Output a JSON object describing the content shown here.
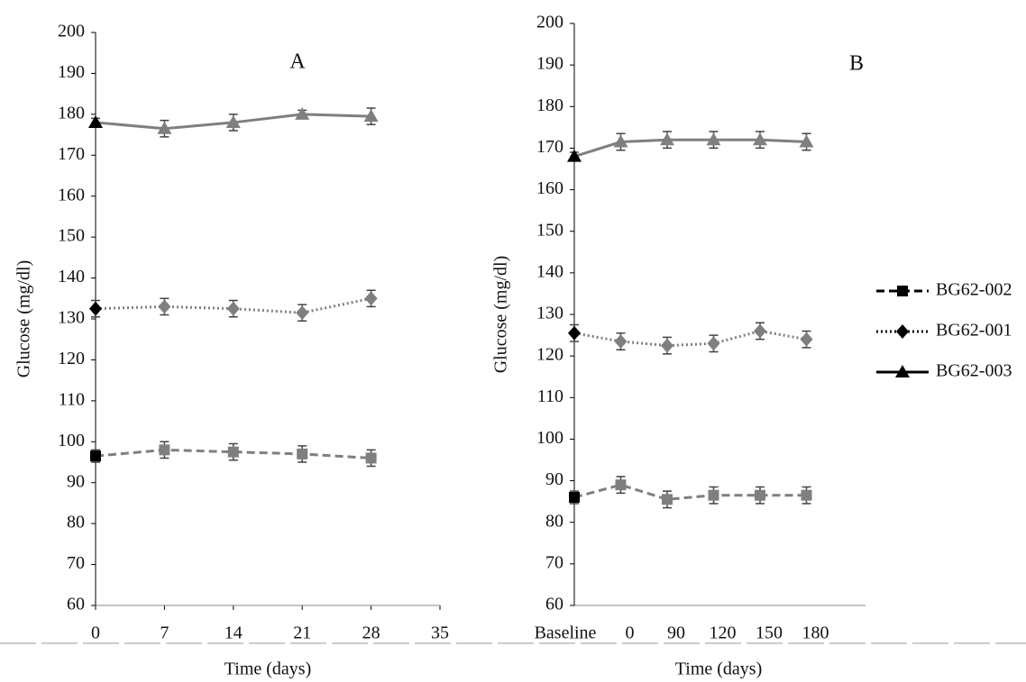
{
  "chart_data": [
    {
      "type": "line",
      "annotation": "A",
      "ylabel": "Glucose (mg/dl)",
      "xlabel": "Time (days)",
      "x": [
        0,
        7,
        14,
        21,
        28
      ],
      "xlim": [
        0,
        35
      ],
      "xticks": [
        0,
        7,
        14,
        21,
        28,
        35
      ],
      "ylim": [
        60,
        200
      ],
      "yticks": [
        60,
        70,
        80,
        90,
        100,
        110,
        120,
        130,
        140,
        150,
        160,
        170,
        180,
        190,
        200
      ],
      "series": [
        {
          "name": "BG62-002",
          "color": "#7f7f7f",
          "marker": "square",
          "dash": "dashed",
          "values": [
            96.5,
            98,
            97.5,
            97,
            96
          ],
          "errors": [
            1.5,
            2,
            2,
            2,
            2
          ]
        },
        {
          "name": "BG62-001",
          "color": "#7f7f7f",
          "marker": "diamond",
          "dash": "dotted",
          "values": [
            132.5,
            133,
            132.5,
            131.5,
            135
          ],
          "errors": [
            2,
            2,
            2,
            2,
            2
          ]
        },
        {
          "name": "BG62-003",
          "color": "#7f7f7f",
          "marker": "triangle",
          "dash": "solid",
          "values": [
            178,
            176.5,
            178,
            180,
            179.5
          ],
          "errors": [
            1,
            2,
            2,
            1,
            2
          ]
        }
      ]
    },
    {
      "type": "line",
      "annotation": "B",
      "ylabel": "Glucose (mg/dl)",
      "xlabel": "Time (days)",
      "categories": [
        "Baseline",
        "0",
        "90",
        "120",
        "150",
        "180"
      ],
      "ylim": [
        60,
        200
      ],
      "yticks": [
        60,
        70,
        80,
        90,
        100,
        110,
        120,
        130,
        140,
        150,
        160,
        170,
        180,
        190,
        200
      ],
      "series": [
        {
          "name": "BG62-002",
          "color": "#7f7f7f",
          "marker": "square",
          "dash": "dashed",
          "values": [
            86,
            89,
            85.5,
            86.5,
            86.5,
            86.5
          ],
          "errors": [
            1.5,
            2,
            2,
            2,
            2,
            2
          ]
        },
        {
          "name": "BG62-001",
          "color": "#7f7f7f",
          "marker": "diamond",
          "dash": "dotted",
          "values": [
            125.5,
            123.5,
            122.5,
            123,
            126,
            124
          ],
          "errors": [
            2,
            2,
            2,
            2,
            2,
            2
          ]
        },
        {
          "name": "BG62-003",
          "color": "#7f7f7f",
          "marker": "triangle",
          "dash": "solid",
          "values": [
            168,
            171.5,
            172,
            172,
            172,
            171.5
          ],
          "errors": [
            1,
            2,
            2,
            2,
            2,
            2
          ]
        }
      ]
    }
  ]
}
